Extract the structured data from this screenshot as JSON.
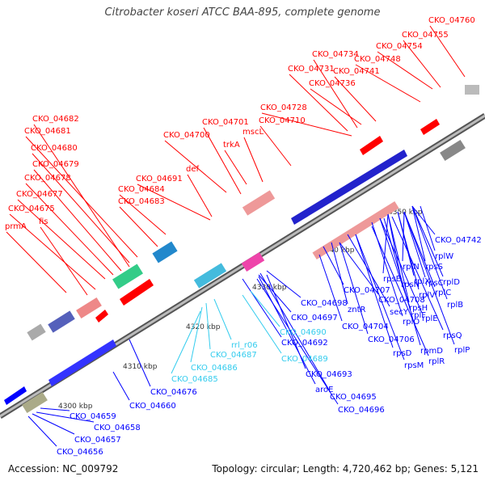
{
  "title": "Citrobacter koseri ATCC BAA-895, complete genome",
  "footer": {
    "accession": "Accession: NC_009792",
    "summary": "Topology: circular; Length: 4,720,462 bp; Genes: 5,121"
  },
  "colors": {
    "forward": "#ff0000",
    "reverse": "#0000ff",
    "highlight": "#33ccee",
    "backbone": "#888888"
  },
  "scale_labels": [
    "4300 kbp",
    "4310 kbp",
    "4320 kbp",
    "4330 kbp",
    "4340 kbp",
    "4350 kbp"
  ],
  "red_labels": [
    "CKO_04760",
    "CKO_04755",
    "CKO_04754",
    "CKO_04748",
    "CKO_04741",
    "CKO_04734",
    "CKO_04731",
    "CKO_04736",
    "CKO_04728",
    "CKO_04710",
    "CKO_04701",
    "mscL",
    "CKO_04700",
    "trkA",
    "def",
    "CKO_04691",
    "CKO_04684",
    "CKO_04683",
    "CKO_04682",
    "CKO_04681",
    "CKO_04680",
    "CKO_04679",
    "CKO_04678",
    "CKO_04677",
    "CKO_04675",
    "fis",
    "prmA"
  ],
  "blue_labels": [
    "CKO_04742",
    "rplW",
    "rpsS",
    "rplD",
    "rplN",
    "rpsC",
    "rplC",
    "rplX",
    "rpsE",
    "rpsN",
    "rplV",
    "rplB",
    "rpsH",
    "rplE",
    "rplF",
    "rpsQ",
    "rplP",
    "rplO",
    "rpmD",
    "rpsD",
    "rplR",
    "rpsM",
    "secY",
    "CKO_04708",
    "CKO_04707",
    "zntR",
    "CKO_04704",
    "CKO_04706",
    "CKO_04698",
    "CKO_04697",
    "CKO_04692",
    "CKO_04693",
    "aroE",
    "CKO_04695",
    "CKO_04696",
    "CKO_04660",
    "CKO_04676",
    "CKO_04659",
    "CKO_04658",
    "CKO_04657",
    "CKO_04656"
  ],
  "cyan_labels": [
    "CKO_04690",
    "rrl_r06",
    "CKO_04689",
    "CKO_04687",
    "CKO_04686",
    "CKO_04685"
  ]
}
